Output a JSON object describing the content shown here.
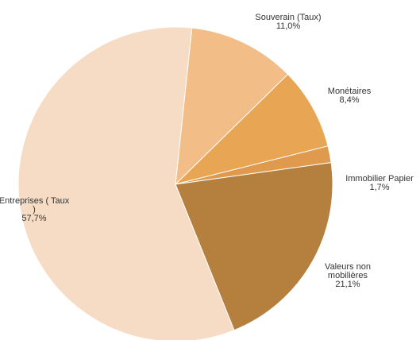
{
  "chart_data": {
    "type": "pie",
    "slices": [
      {
        "name": "Souverain (Taux)",
        "label_lines": [
          "Souverain (Taux)"
        ],
        "value": 11.0,
        "value_label": "11,0%",
        "color": "#f3bd87"
      },
      {
        "name": "Monétaires",
        "label_lines": [
          "Monétaires"
        ],
        "value": 8.4,
        "value_label": "8,4%",
        "color": "#e8a553"
      },
      {
        "name": "Immobilier Papier",
        "label_lines": [
          "Immobilier Papier"
        ],
        "value": 1.7,
        "value_label": "1,7%",
        "color": "#df9a4e"
      },
      {
        "name": "Valeurs non mobilières",
        "label_lines": [
          "Valeurs non",
          "mobilières"
        ],
        "value": 21.1,
        "value_label": "21,1%",
        "color": "#b5803e"
      },
      {
        "name": "Entreprises ( Taux )",
        "label_lines": [
          "Entreprises ( Taux",
          ")"
        ],
        "value": 57.7,
        "value_label": "57,7%",
        "color": "#f7dcc5"
      }
    ]
  }
}
